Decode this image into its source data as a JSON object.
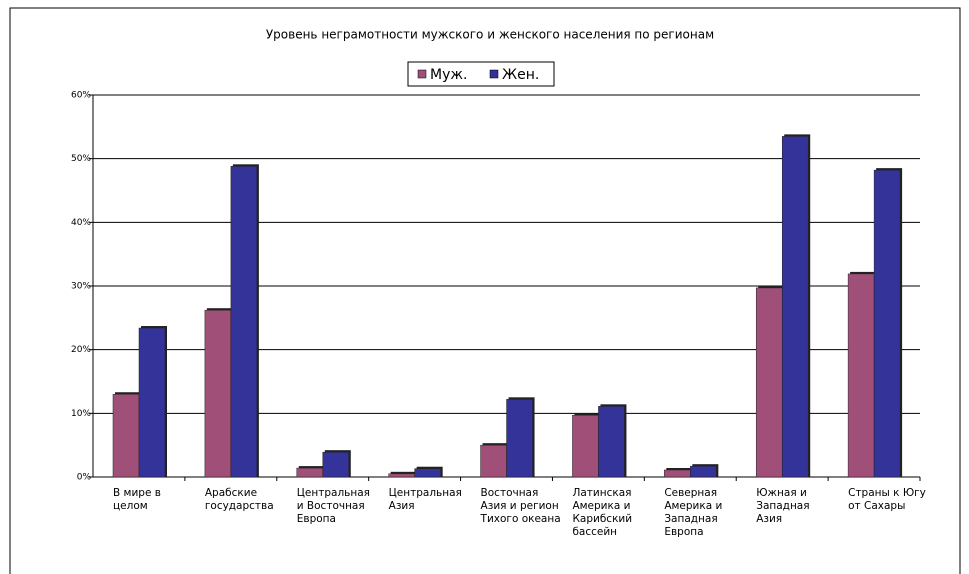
{
  "chart_data": {
    "type": "bar",
    "title": "Уровень неграмотности мужского и женского населения по регионам",
    "categories": [
      "В мире в целом",
      "Арабские государства",
      "Центральная и Восточная Европа",
      "Центральная Азия",
      "Восточная Азия и регион Тихого океана",
      "Латинская Америка и Карибский бассейн",
      "Северная Америка и Западная Европа",
      "Южная и Западная Азия",
      "Страны к Югу от Сахары"
    ],
    "series": [
      {
        "name": "Муж.",
        "color": "#a05078",
        "values": [
          13.0,
          26.2,
          1.4,
          0.5,
          5.0,
          9.7,
          1.1,
          29.7,
          31.9
        ]
      },
      {
        "name": "Жен.",
        "color": "#333399",
        "values": [
          23.4,
          48.8,
          3.9,
          1.3,
          12.2,
          11.1,
          1.7,
          53.5,
          48.2
        ]
      }
    ],
    "ylim": [
      0,
      60
    ],
    "yticks": [
      {
        "value": 0,
        "label": "0%"
      },
      {
        "value": 10,
        "label": "10%"
      },
      {
        "value": 20,
        "label": "20%"
      },
      {
        "value": 30,
        "label": "30%"
      },
      {
        "value": 40,
        "label": "40%"
      },
      {
        "value": 50,
        "label": "50%"
      },
      {
        "value": 60,
        "label": "60%"
      }
    ],
    "grid": true,
    "legend": "top"
  }
}
